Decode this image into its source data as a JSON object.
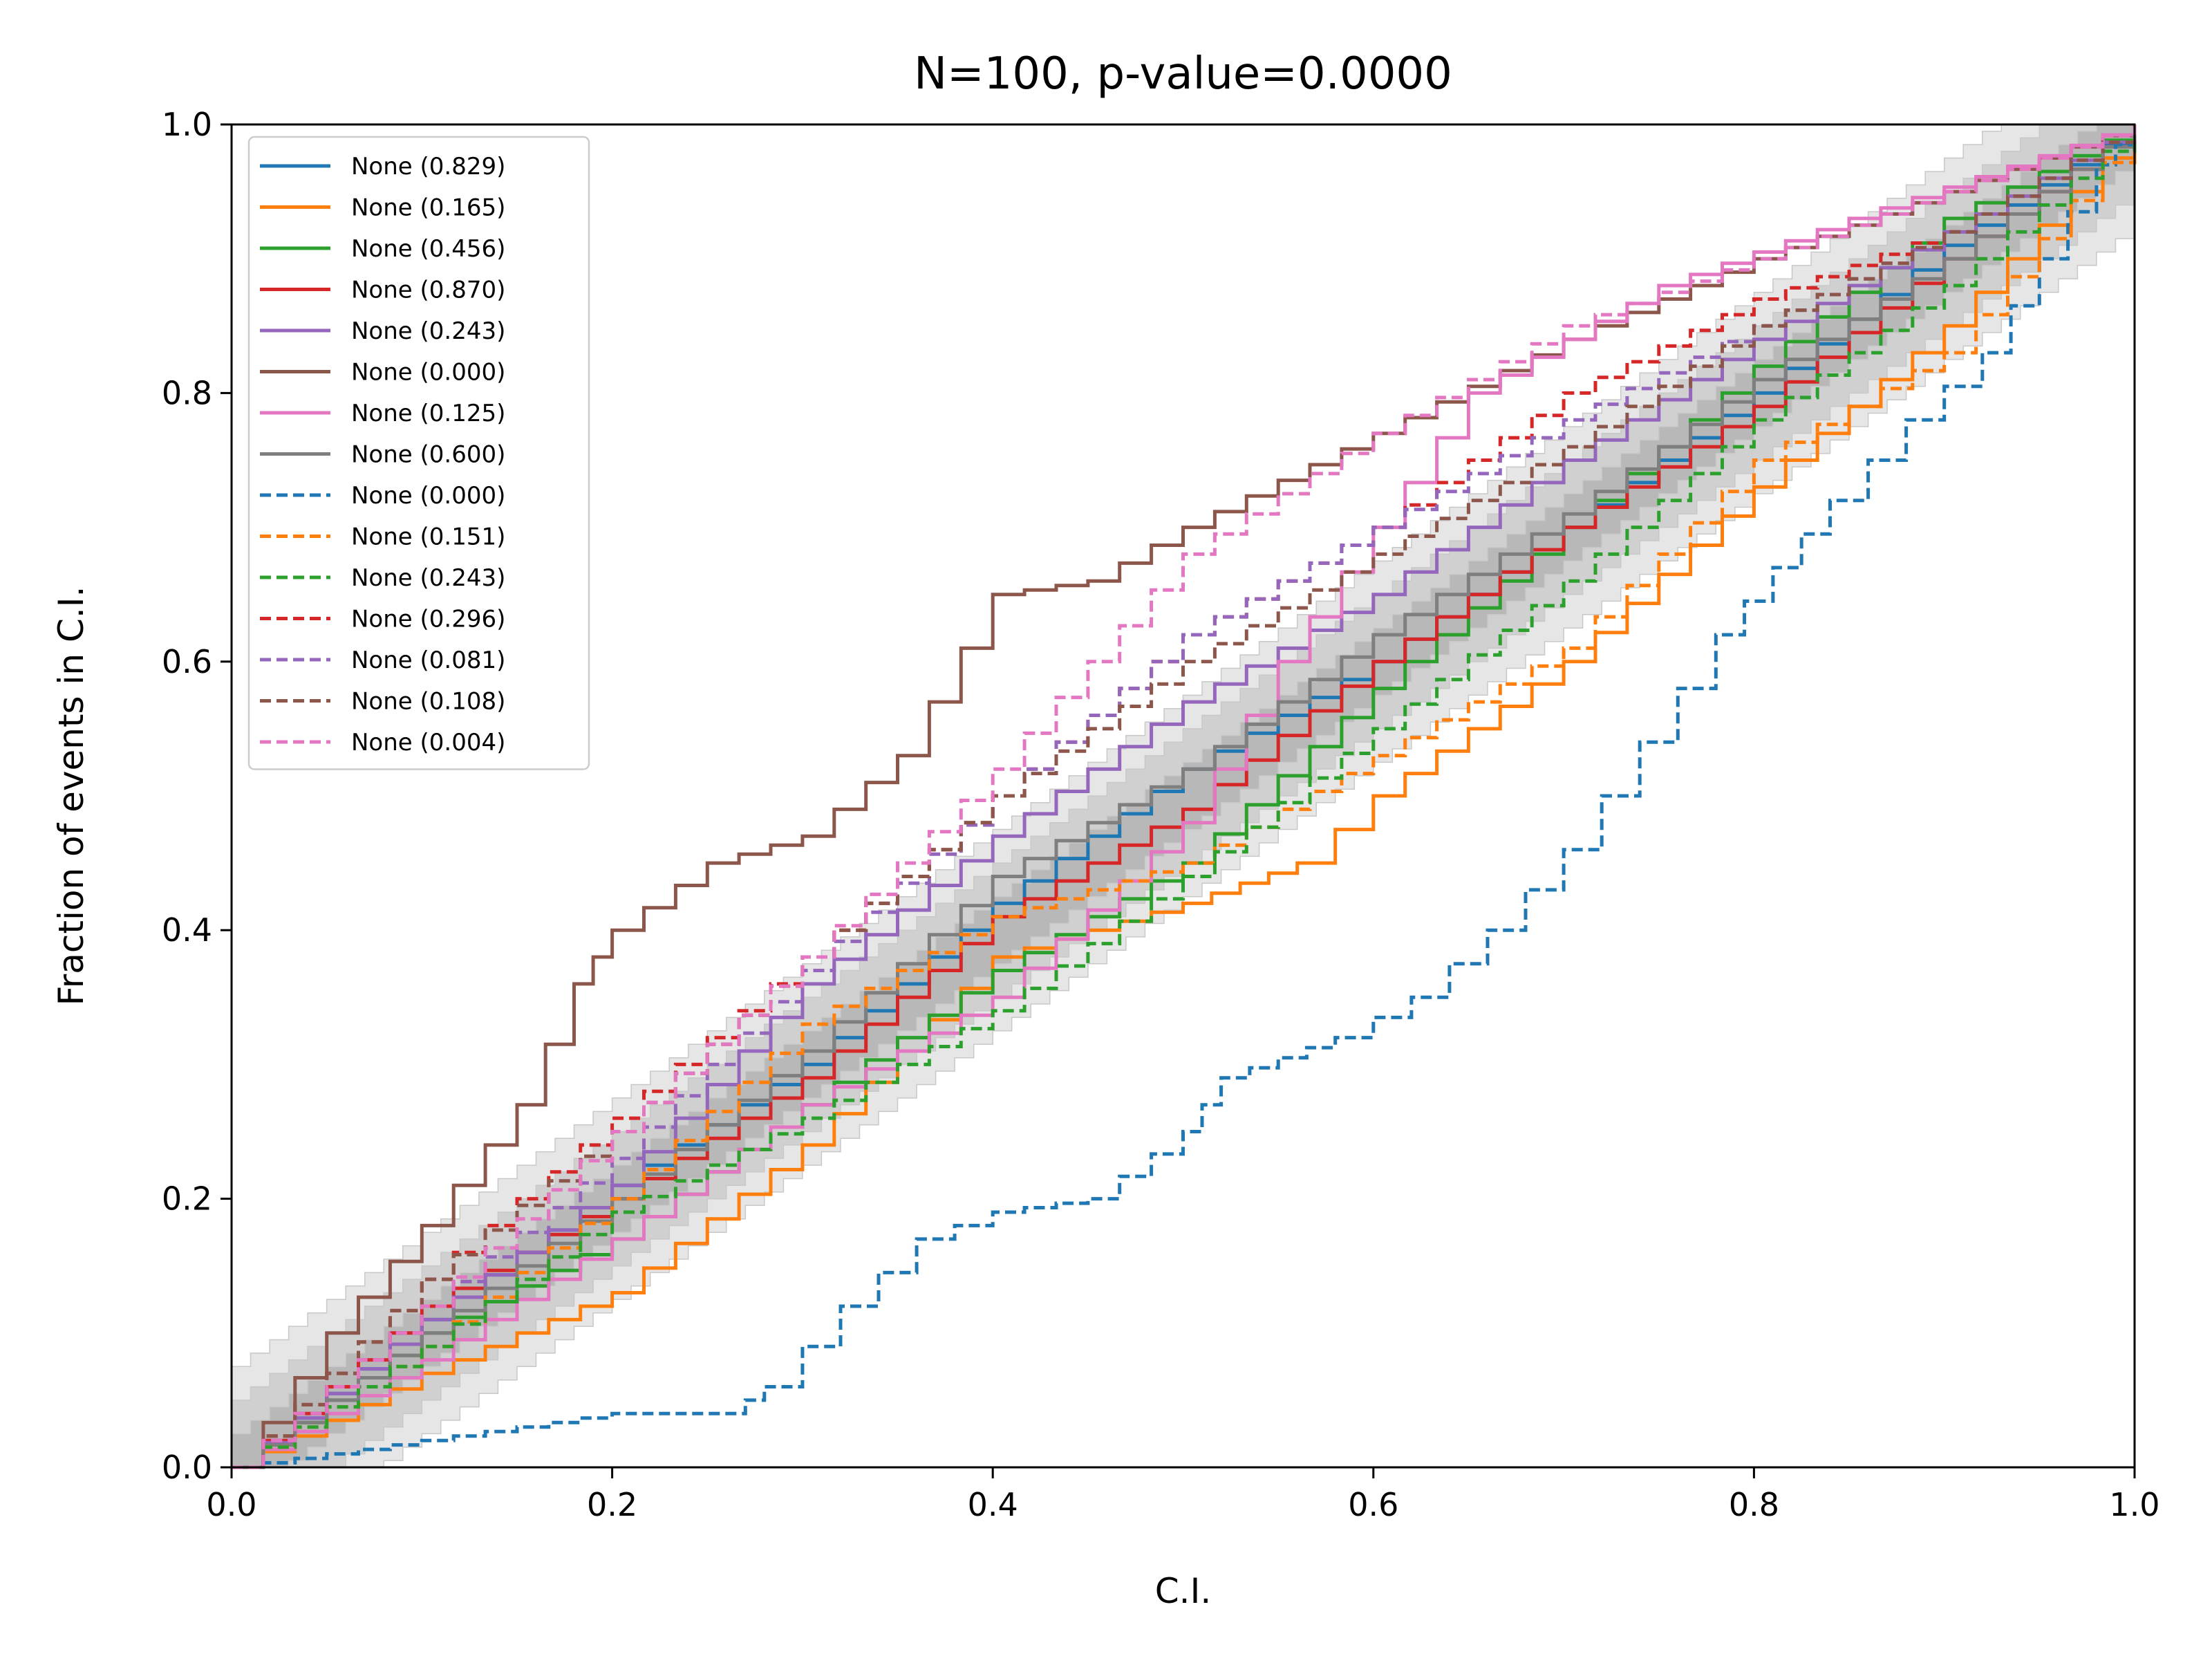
{
  "chart_data": {
    "type": "line",
    "title": "N=100, p-value=0.0000",
    "xlabel": "C.I.",
    "ylabel": "Fraction of events in C.I.",
    "xlim": [
      0,
      1
    ],
    "ylim": [
      0,
      1
    ],
    "xticks": [
      "0.0",
      "0.2",
      "0.4",
      "0.6",
      "0.8",
      "1.0"
    ],
    "yticks": [
      "0.0",
      "0.2",
      "0.4",
      "0.6",
      "0.8",
      "1.0"
    ],
    "grid": false,
    "legend_position": "upper-left",
    "bands": [
      {
        "name": "outer",
        "color": "#e6e6e6",
        "half_width": 0.075
      },
      {
        "name": "middle",
        "color": "#d0d0d0",
        "half_width": 0.05
      },
      {
        "name": "inner",
        "color": "#b8b8b8",
        "half_width": 0.025
      }
    ],
    "series": [
      {
        "label": "None (0.829)",
        "color": "#1f77b4",
        "dash": false,
        "points": [
          [
            0,
            0
          ],
          [
            0.1,
            0.11
          ],
          [
            0.2,
            0.21
          ],
          [
            0.3,
            0.3
          ],
          [
            0.4,
            0.42
          ],
          [
            0.5,
            0.52
          ],
          [
            0.6,
            0.6
          ],
          [
            0.7,
            0.7
          ],
          [
            0.8,
            0.8
          ],
          [
            0.9,
            0.91
          ],
          [
            1,
            1
          ]
        ]
      },
      {
        "label": "None (0.165)",
        "color": "#ff7f0e",
        "dash": false,
        "points": [
          [
            0,
            0
          ],
          [
            0.1,
            0.07
          ],
          [
            0.2,
            0.13
          ],
          [
            0.3,
            0.24
          ],
          [
            0.4,
            0.38
          ],
          [
            0.5,
            0.42
          ],
          [
            0.56,
            0.45
          ],
          [
            0.6,
            0.5
          ],
          [
            0.7,
            0.6
          ],
          [
            0.8,
            0.73
          ],
          [
            0.9,
            0.85
          ],
          [
            1,
            1
          ]
        ]
      },
      {
        "label": "None (0.456)",
        "color": "#2ca02c",
        "dash": false,
        "points": [
          [
            0,
            0
          ],
          [
            0.1,
            0.1
          ],
          [
            0.2,
            0.17
          ],
          [
            0.3,
            0.27
          ],
          [
            0.4,
            0.37
          ],
          [
            0.5,
            0.45
          ],
          [
            0.6,
            0.58
          ],
          [
            0.7,
            0.7
          ],
          [
            0.8,
            0.82
          ],
          [
            0.9,
            0.93
          ],
          [
            1,
            1
          ]
        ]
      },
      {
        "label": "None (0.870)",
        "color": "#d62728",
        "dash": false,
        "points": [
          [
            0,
            0
          ],
          [
            0.1,
            0.12
          ],
          [
            0.2,
            0.2
          ],
          [
            0.3,
            0.29
          ],
          [
            0.4,
            0.41
          ],
          [
            0.5,
            0.49
          ],
          [
            0.6,
            0.6
          ],
          [
            0.7,
            0.7
          ],
          [
            0.8,
            0.79
          ],
          [
            0.9,
            0.9
          ],
          [
            1,
            1
          ]
        ]
      },
      {
        "label": "None (0.243)",
        "color": "#9467bd",
        "dash": false,
        "points": [
          [
            0,
            0
          ],
          [
            0.1,
            0.11
          ],
          [
            0.2,
            0.21
          ],
          [
            0.3,
            0.36
          ],
          [
            0.4,
            0.47
          ],
          [
            0.5,
            0.57
          ],
          [
            0.6,
            0.65
          ],
          [
            0.7,
            0.75
          ],
          [
            0.8,
            0.84
          ],
          [
            0.9,
            0.92
          ],
          [
            1,
            1
          ]
        ]
      },
      {
        "label": "None (0.000)",
        "color": "#8c564b",
        "dash": false,
        "points": [
          [
            0,
            0
          ],
          [
            0.05,
            0.1
          ],
          [
            0.1,
            0.18
          ],
          [
            0.15,
            0.27
          ],
          [
            0.18,
            0.36
          ],
          [
            0.2,
            0.4
          ],
          [
            0.25,
            0.45
          ],
          [
            0.3,
            0.47
          ],
          [
            0.35,
            0.53
          ],
          [
            0.4,
            0.65
          ],
          [
            0.45,
            0.66
          ],
          [
            0.5,
            0.7
          ],
          [
            0.6,
            0.77
          ],
          [
            0.7,
            0.84
          ],
          [
            0.8,
            0.9
          ],
          [
            0.9,
            0.95
          ],
          [
            1,
            1
          ]
        ]
      },
      {
        "label": "None (0.125)",
        "color": "#e377c2",
        "dash": false,
        "points": [
          [
            0,
            0
          ],
          [
            0.1,
            0.08
          ],
          [
            0.2,
            0.17
          ],
          [
            0.3,
            0.27
          ],
          [
            0.4,
            0.35
          ],
          [
            0.5,
            0.48
          ],
          [
            0.55,
            0.6
          ],
          [
            0.65,
            0.8
          ],
          [
            0.75,
            0.88
          ],
          [
            0.85,
            0.93
          ],
          [
            1,
            1
          ]
        ]
      },
      {
        "label": "None (0.600)",
        "color": "#7f7f7f",
        "dash": false,
        "points": [
          [
            0,
            0
          ],
          [
            0.1,
            0.1
          ],
          [
            0.2,
            0.2
          ],
          [
            0.3,
            0.31
          ],
          [
            0.4,
            0.44
          ],
          [
            0.5,
            0.52
          ],
          [
            0.6,
            0.62
          ],
          [
            0.7,
            0.71
          ],
          [
            0.8,
            0.81
          ],
          [
            0.9,
            0.9
          ],
          [
            1,
            1
          ]
        ]
      },
      {
        "label": "None (0.000)",
        "color": "#1f77b4",
        "dash": true,
        "points": [
          [
            0,
            0
          ],
          [
            0.05,
            0.01
          ],
          [
            0.1,
            0.02
          ],
          [
            0.15,
            0.03
          ],
          [
            0.2,
            0.04
          ],
          [
            0.26,
            0.04
          ],
          [
            0.28,
            0.06
          ],
          [
            0.32,
            0.12
          ],
          [
            0.36,
            0.17
          ],
          [
            0.4,
            0.19
          ],
          [
            0.45,
            0.2
          ],
          [
            0.5,
            0.25
          ],
          [
            0.52,
            0.29
          ],
          [
            0.58,
            0.32
          ],
          [
            0.62,
            0.35
          ],
          [
            0.66,
            0.4
          ],
          [
            0.7,
            0.46
          ],
          [
            0.74,
            0.54
          ],
          [
            0.78,
            0.62
          ],
          [
            0.84,
            0.72
          ],
          [
            0.88,
            0.78
          ],
          [
            0.92,
            0.83
          ],
          [
            0.95,
            0.9
          ],
          [
            0.98,
            0.97
          ],
          [
            1,
            1
          ]
        ]
      },
      {
        "label": "None (0.151)",
        "color": "#ff7f0e",
        "dash": true,
        "points": [
          [
            0,
            0
          ],
          [
            0.1,
            0.09
          ],
          [
            0.2,
            0.2
          ],
          [
            0.3,
            0.33
          ],
          [
            0.4,
            0.41
          ],
          [
            0.5,
            0.45
          ],
          [
            0.6,
            0.53
          ],
          [
            0.7,
            0.61
          ],
          [
            0.8,
            0.75
          ],
          [
            0.9,
            0.83
          ],
          [
            1,
            1
          ]
        ]
      },
      {
        "label": "None (0.243)",
        "color": "#2ca02c",
        "dash": true,
        "points": [
          [
            0,
            0
          ],
          [
            0.1,
            0.09
          ],
          [
            0.2,
            0.19
          ],
          [
            0.3,
            0.26
          ],
          [
            0.4,
            0.34
          ],
          [
            0.5,
            0.44
          ],
          [
            0.6,
            0.55
          ],
          [
            0.7,
            0.66
          ],
          [
            0.8,
            0.78
          ],
          [
            0.9,
            0.88
          ],
          [
            1,
            1
          ]
        ]
      },
      {
        "label": "None (0.296)",
        "color": "#d62728",
        "dash": true,
        "points": [
          [
            0,
            0
          ],
          [
            0.1,
            0.14
          ],
          [
            0.2,
            0.26
          ],
          [
            0.3,
            0.38
          ],
          [
            0.4,
            0.5
          ],
          [
            0.5,
            0.62
          ],
          [
            0.6,
            0.7
          ],
          [
            0.7,
            0.8
          ],
          [
            0.8,
            0.87
          ],
          [
            0.9,
            0.92
          ],
          [
            1,
            1
          ]
        ]
      },
      {
        "label": "None (0.081)",
        "color": "#9467bd",
        "dash": true,
        "points": [
          [
            0,
            0
          ],
          [
            0.1,
            0.12
          ],
          [
            0.2,
            0.23
          ],
          [
            0.3,
            0.37
          ],
          [
            0.4,
            0.5
          ],
          [
            0.5,
            0.62
          ],
          [
            0.6,
            0.7
          ],
          [
            0.7,
            0.78
          ],
          [
            0.8,
            0.85
          ],
          [
            0.9,
            0.92
          ],
          [
            1,
            1
          ]
        ]
      },
      {
        "label": "None (0.108)",
        "color": "#8c564b",
        "dash": true,
        "points": [
          [
            0,
            0
          ],
          [
            0.1,
            0.14
          ],
          [
            0.2,
            0.25
          ],
          [
            0.3,
            0.38
          ],
          [
            0.4,
            0.5
          ],
          [
            0.5,
            0.6
          ],
          [
            0.6,
            0.68
          ],
          [
            0.7,
            0.76
          ],
          [
            0.8,
            0.85
          ],
          [
            0.9,
            0.92
          ],
          [
            1,
            1
          ]
        ]
      },
      {
        "label": "None (0.004)",
        "color": "#e377c2",
        "dash": true,
        "points": [
          [
            0,
            0
          ],
          [
            0.1,
            0.12
          ],
          [
            0.2,
            0.25
          ],
          [
            0.3,
            0.38
          ],
          [
            0.4,
            0.52
          ],
          [
            0.5,
            0.68
          ],
          [
            0.6,
            0.77
          ],
          [
            0.7,
            0.85
          ],
          [
            0.8,
            0.9
          ],
          [
            0.9,
            0.95
          ],
          [
            1,
            1
          ]
        ]
      }
    ]
  }
}
